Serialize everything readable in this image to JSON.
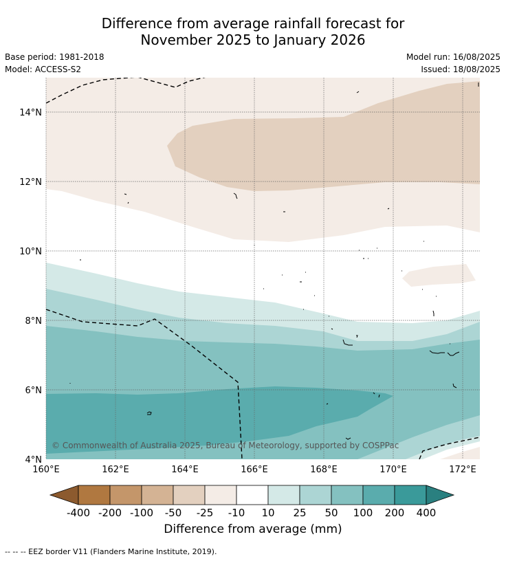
{
  "title_line1": "Difference from average rainfall forecast for",
  "title_line2": "November 2025 to January 2026",
  "meta": {
    "base_period": "Base period: 1981-2018",
    "model": "Model: ACCESS-S2",
    "model_run": "Model run: 16/08/2025",
    "issued": "Issued: 18/08/2025"
  },
  "map": {
    "lon_ticks": [
      "160°E",
      "162°E",
      "164°E",
      "166°E",
      "168°E",
      "170°E",
      "172°E"
    ],
    "lat_ticks": [
      "14°N",
      "12°N",
      "10°N",
      "8°N",
      "6°N",
      "4°N"
    ],
    "copyright": "© Commonwealth of Australia 2025, Bureau of Meteorology, supported by COSPPac",
    "border_style": "dashed"
  },
  "colorbar": {
    "labels": [
      "-400",
      "-200",
      "-100",
      "-50",
      "-25",
      "-10",
      "10",
      "25",
      "50",
      "100",
      "200",
      "400"
    ],
    "colors": [
      "#8c5a2e",
      "#b07840",
      "#c4966a",
      "#d4b394",
      "#e3d0bf",
      "#f4ece6",
      "#ffffff",
      "#d4e9e7",
      "#acd5d4",
      "#84c1c0",
      "#5aacad",
      "#3a9a9a",
      "#2a8080"
    ],
    "title": "Difference from average (mm)"
  },
  "footnote": "--  --  -- EEZ border V11 (Flanders Marine Institute, 2019)."
}
